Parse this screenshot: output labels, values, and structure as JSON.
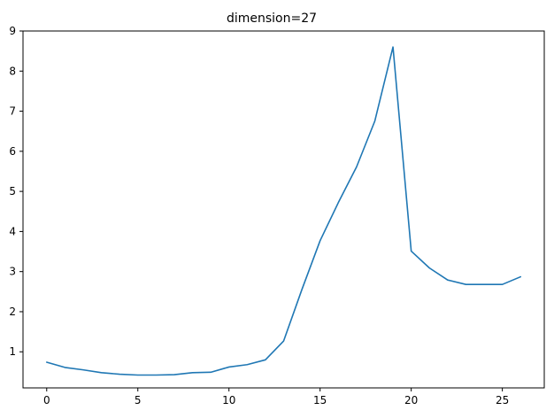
{
  "chart_data": {
    "type": "line",
    "title": "dimension=27",
    "xlabel": "",
    "ylabel": "",
    "xlim": [
      -1.3,
      27.3
    ],
    "ylim": [
      0.1,
      9.0
    ],
    "xticks": [
      0,
      5,
      10,
      15,
      20,
      25
    ],
    "yticks": [
      1,
      2,
      3,
      4,
      5,
      6,
      7,
      8,
      9
    ],
    "grid": false,
    "series": [
      {
        "color": "#1f77b4",
        "x": [
          0,
          1,
          2,
          3,
          4,
          5,
          6,
          7,
          8,
          9,
          10,
          11,
          12,
          13,
          14,
          15,
          16,
          17,
          18,
          19,
          20,
          21,
          22,
          23,
          24,
          25,
          26
        ],
        "y": [
          0.74,
          0.61,
          0.55,
          0.48,
          0.44,
          0.42,
          0.42,
          0.43,
          0.48,
          0.49,
          0.62,
          0.68,
          0.8,
          1.27,
          2.55,
          3.77,
          4.72,
          5.61,
          6.75,
          8.6,
          3.51,
          3.09,
          2.79,
          2.68,
          2.68,
          2.68,
          2.87
        ]
      }
    ]
  }
}
